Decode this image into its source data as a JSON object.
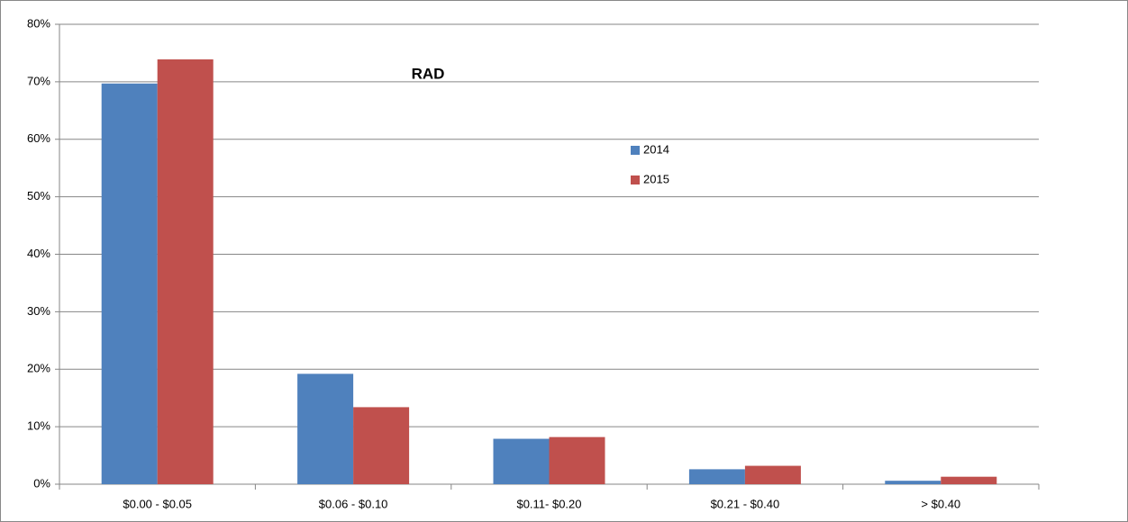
{
  "chart_data": {
    "type": "bar",
    "title": "RAD",
    "categories": [
      "$0.00 - $0.05",
      "$0.06 - $0.10",
      "$0.11- $0.20",
      "$0.21 - $0.40",
      "> $0.40"
    ],
    "series": [
      {
        "name": "2014",
        "color": "#4f81bd",
        "values": [
          69.7,
          19.2,
          7.9,
          2.6,
          0.6
        ]
      },
      {
        "name": "2015",
        "color": "#c0504d",
        "values": [
          73.9,
          13.4,
          8.2,
          3.2,
          1.3
        ]
      }
    ],
    "ylim": [
      0,
      80
    ],
    "yticks": [
      {
        "value": 0,
        "label": "0%"
      },
      {
        "value": 10,
        "label": "10%"
      },
      {
        "value": 20,
        "label": "20%"
      },
      {
        "value": 30,
        "label": "30%"
      },
      {
        "value": 40,
        "label": "40%"
      },
      {
        "value": 50,
        "label": "50%"
      },
      {
        "value": 60,
        "label": "60%"
      },
      {
        "value": 70,
        "label": "70%"
      },
      {
        "value": 80,
        "label": "80%"
      }
    ],
    "grid": true
  }
}
